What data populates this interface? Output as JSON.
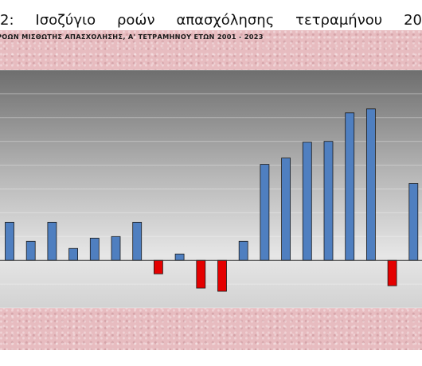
{
  "caption": {
    "number": "2:",
    "words": [
      "Ισοζύγιο",
      "ροών",
      "απασχόλησης",
      "τετραμήνου",
      "20"
    ]
  },
  "chart_data": {
    "type": "bar",
    "title": "ΡΟΩΝ ΜΙΣΘΩΤΗΣ ΑΠΑΣΧΟΛΗΣΗΣ, Α' ΤΕΤΡΑΜΗΝΟΥ ΕΤΩΝ  2001 - 2023",
    "xlabel": "",
    "ylabel": "",
    "grid": true,
    "legend": "none",
    "series": [
      {
        "values": [
          4.8,
          2.4,
          4.8,
          1.5,
          2.8,
          3.0,
          4.8,
          -1.7,
          0.8,
          -3.5,
          -3.9,
          2.4,
          12.1,
          12.9,
          14.9,
          15.0,
          18.6,
          19.1,
          -3.2,
          9.7
        ]
      }
    ],
    "ylim": [
      -6,
      24
    ],
    "colors": {
      "positive": "#4f7fc0",
      "negative": "#e40000"
    }
  }
}
